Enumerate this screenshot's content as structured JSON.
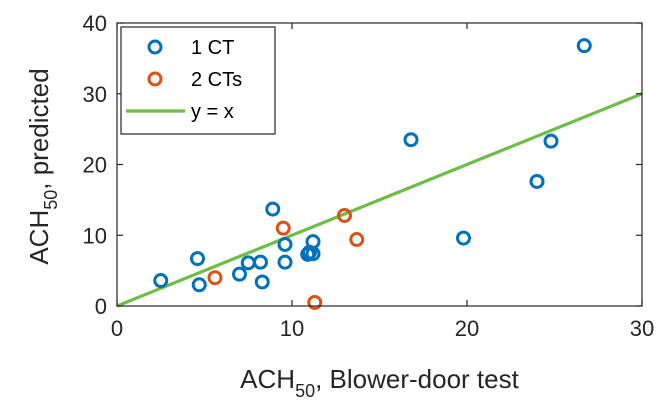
{
  "chart_data": {
    "type": "scatter",
    "title": "",
    "xlabel": {
      "base": "ACH",
      "sub": "50",
      "rest": ", Blower-door test"
    },
    "ylabel": {
      "base": "ACH",
      "sub": "50",
      "rest": ", predicted"
    },
    "xlim": [
      0,
      30
    ],
    "ylim": [
      0,
      40
    ],
    "xticks": [
      "0",
      "10",
      "20",
      "30"
    ],
    "yticks": [
      "0",
      "10",
      "20",
      "30",
      "40"
    ],
    "grid": false,
    "legend": "top-left",
    "series": [
      {
        "name": "1 CT",
        "color": "#0072BD",
        "marker": "open-circle",
        "x": [
          2.5,
          4.6,
          4.7,
          7.0,
          7.5,
          8.2,
          8.3,
          8.9,
          9.6,
          9.6,
          10.9,
          11.0,
          11.2,
          11.2,
          16.8,
          19.8,
          24.0,
          24.8,
          26.7
        ],
        "y": [
          3.6,
          6.7,
          3.0,
          4.5,
          6.1,
          6.2,
          3.4,
          13.7,
          8.7,
          6.2,
          7.3,
          7.6,
          9.1,
          7.4,
          23.5,
          9.6,
          17.6,
          23.3,
          36.8
        ]
      },
      {
        "name": "2 CTs",
        "color": "#D95319",
        "marker": "open-circle",
        "x": [
          5.6,
          9.5,
          11.3,
          13.0,
          13.7
        ],
        "y": [
          4.0,
          11.0,
          0.5,
          12.8,
          9.4
        ]
      },
      {
        "name": "y = x",
        "color": "#6CBE45",
        "marker": "line",
        "x": [
          0,
          30
        ],
        "y": [
          0,
          30
        ]
      }
    ]
  }
}
